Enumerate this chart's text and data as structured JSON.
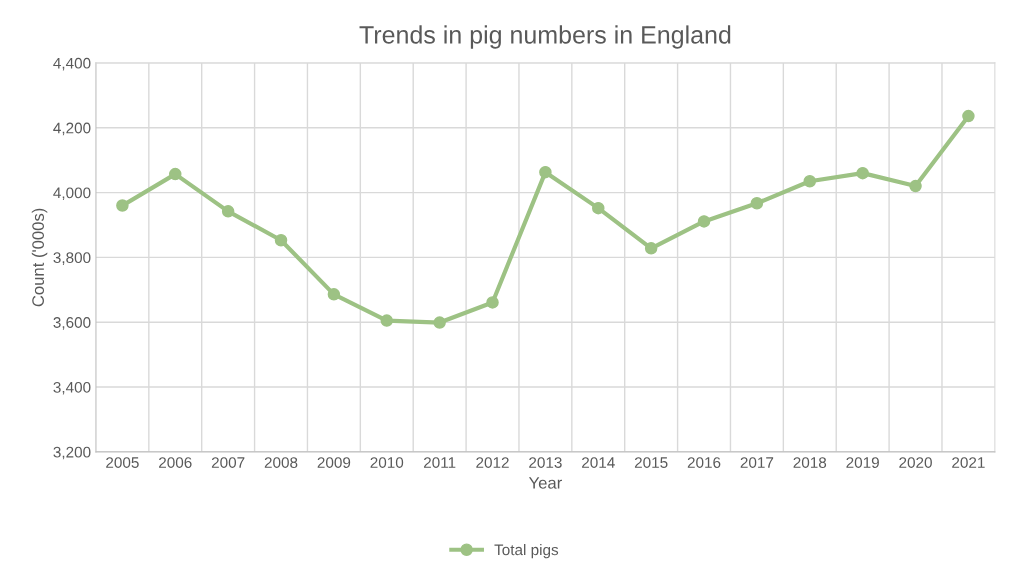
{
  "chart_data": {
    "type": "line",
    "title": "Trends in pig numbers in England",
    "xlabel": "Year",
    "ylabel": "Count ('000s)",
    "categories": [
      "2005",
      "2006",
      "2007",
      "2008",
      "2009",
      "2010",
      "2011",
      "2012",
      "2013",
      "2014",
      "2015",
      "2016",
      "2017",
      "2018",
      "2019",
      "2020",
      "2021"
    ],
    "series": [
      {
        "name": "Total pigs",
        "color": "#9dc284",
        "values": [
          3960,
          4057,
          3942,
          3853,
          3686,
          3605,
          3599,
          3661,
          4063,
          3952,
          3828,
          3911,
          3967,
          4035,
          4060,
          4020,
          4236
        ]
      }
    ],
    "ylim": [
      3200,
      4400
    ],
    "yticks": [
      {
        "value": 3200,
        "label": "3,200"
      },
      {
        "value": 3400,
        "label": "3,400"
      },
      {
        "value": 3600,
        "label": "3,600"
      },
      {
        "value": 3800,
        "label": "3,800"
      },
      {
        "value": 4000,
        "label": "4,000"
      },
      {
        "value": 4200,
        "label": "4,200"
      },
      {
        "value": 4400,
        "label": "4,400"
      }
    ],
    "grid": true,
    "legend": "bottom",
    "marker": "circle",
    "line_style": "solid"
  }
}
